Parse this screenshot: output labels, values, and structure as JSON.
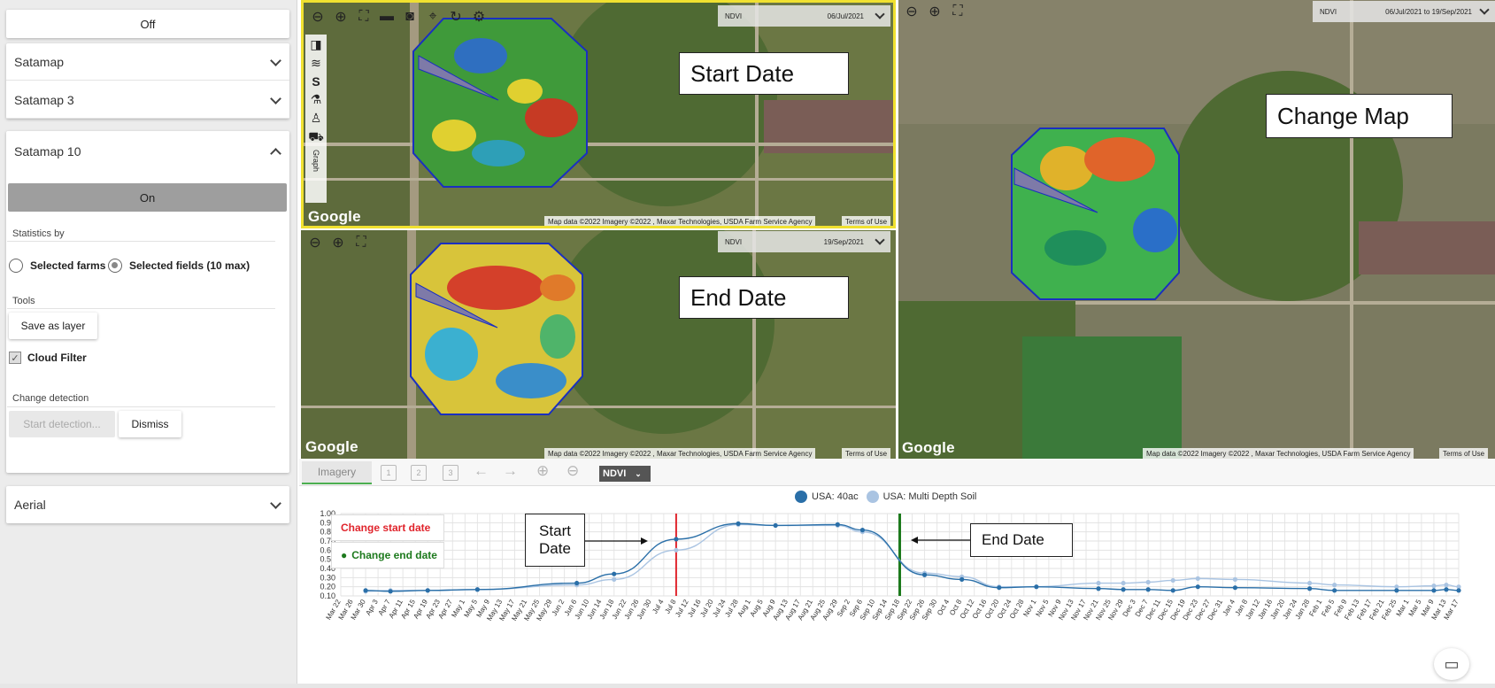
{
  "left_panel": {
    "off_label": "Off",
    "accordions": [
      "Satamap",
      "Satamap 3",
      "Satamap 10",
      "Aerial"
    ],
    "on_label": "On",
    "statistics_by_label": "Statistics by",
    "radio_farms": "Selected farms",
    "radio_fields": "Selected fields (10 max)",
    "tools_label": "Tools",
    "save_layer": "Save as layer",
    "cloud_filter": "Cloud Filter",
    "change_detection_label": "Change detection",
    "start_detection": "Start detection...",
    "dismiss": "Dismiss"
  },
  "maps": {
    "ndvi": "NDVI",
    "start_date": "06/Jul/2021",
    "end_date": "19/Sep/2021",
    "range": "06/Jul/2021 to 19/Sep/2021",
    "google": "Google",
    "map_data": "Map data ©2022 Imagery ©2022 , Maxar Technologies, USDA Farm Service Agency",
    "terms": "Terms of Use",
    "graph_tab": "Graph"
  },
  "callouts": {
    "start": "Start Date",
    "end": "End Date",
    "change": "Change Map",
    "chart_start_l1": "Start",
    "chart_start_l2": "Date",
    "chart_end": "End Date"
  },
  "bottom": {
    "tab_imagery": "Imagery",
    "ndvi_select": "NDVI",
    "btn_change_start": "Change start date",
    "btn_change_end": "Change end date"
  },
  "colors": {
    "series1": "#2a6fa8",
    "series2": "#aac4e2",
    "start_line": "#e0242c",
    "end_line": "#1d7a1d",
    "map_highlight": "#f0e130"
  },
  "chart_data": {
    "type": "line",
    "ylim": [
      0.1,
      1.0
    ],
    "yticks": [
      "1.00",
      "0.90",
      "0.80",
      "0.70",
      "0.60",
      "0.50",
      "0.40",
      "0.30",
      "0.20",
      "0.10"
    ],
    "legend": [
      "USA: 40ac",
      "USA: Multi Depth Soil"
    ],
    "legend_position": "top",
    "grid": true,
    "x": [
      "Mar 22",
      "Mar 26",
      "Mar 30",
      "Apr 3",
      "Apr 7",
      "Apr 11",
      "Apr 15",
      "Apr 19",
      "Apr 23",
      "Apr 27",
      "May 1",
      "May 5",
      "May 9",
      "May 13",
      "May 17",
      "May 21",
      "May 25",
      "May 29",
      "Jun 2",
      "Jun 6",
      "Jun 10",
      "Jun 14",
      "Jun 18",
      "Jun 22",
      "Jun 26",
      "Jun 30",
      "Jul 4",
      "Jul 8",
      "Jul 12",
      "Jul 16",
      "Jul 20",
      "Jul 24",
      "Jul 28",
      "Aug 1",
      "Aug 5",
      "Aug 9",
      "Aug 13",
      "Aug 17",
      "Aug 21",
      "Aug 25",
      "Aug 29",
      "Sep 2",
      "Sep 6",
      "Sep 10",
      "Sep 14",
      "Sep 18",
      "Sep 22",
      "Sep 26",
      "Sep 30",
      "Oct 4",
      "Oct 8",
      "Oct 12",
      "Oct 16",
      "Oct 20",
      "Oct 24",
      "Oct 28",
      "Nov 1",
      "Nov 5",
      "Nov 9",
      "Nov 13",
      "Nov 17",
      "Nov 21",
      "Nov 25",
      "Nov 29",
      "Dec 3",
      "Dec 7",
      "Dec 11",
      "Dec 15",
      "Dec 19",
      "Dec 23",
      "Dec 27",
      "Dec 31",
      "Jan 4",
      "Jan 8",
      "Jan 12",
      "Jan 16",
      "Jan 20",
      "Jan 24",
      "Jan 28",
      "Feb 1",
      "Feb 5",
      "Feb 9",
      "Feb 13",
      "Feb 17",
      "Feb 21",
      "Feb 25",
      "Mar 1",
      "Mar 5",
      "Mar 9",
      "Mar 13",
      "Mar 17"
    ],
    "series": [
      {
        "name": "USA: 40ac",
        "points": [
          [
            2,
            0.16
          ],
          [
            4,
            0.15
          ],
          [
            7,
            0.16
          ],
          [
            11,
            0.17
          ],
          [
            19,
            0.24
          ],
          [
            22,
            0.34
          ],
          [
            27,
            0.72
          ],
          [
            32,
            0.89
          ],
          [
            35,
            0.87
          ],
          [
            40,
            0.88
          ],
          [
            42,
            0.82
          ],
          [
            47,
            0.33
          ],
          [
            50,
            0.28
          ],
          [
            53,
            0.19
          ],
          [
            56,
            0.2
          ],
          [
            61,
            0.18
          ],
          [
            63,
            0.17
          ],
          [
            65,
            0.17
          ],
          [
            67,
            0.16
          ],
          [
            69,
            0.2
          ],
          [
            72,
            0.19
          ],
          [
            78,
            0.18
          ],
          [
            80,
            0.16
          ],
          [
            85,
            0.16
          ],
          [
            88,
            0.16
          ],
          [
            89,
            0.17
          ],
          [
            90,
            0.16
          ]
        ]
      },
      {
        "name": "USA: Multi Depth Soil",
        "points": [
          [
            2,
            0.15
          ],
          [
            4,
            0.16
          ],
          [
            7,
            0.16
          ],
          [
            11,
            0.17
          ],
          [
            19,
            0.22
          ],
          [
            22,
            0.28
          ],
          [
            27,
            0.6
          ],
          [
            32,
            0.88
          ],
          [
            35,
            0.87
          ],
          [
            40,
            0.87
          ],
          [
            42,
            0.8
          ],
          [
            47,
            0.35
          ],
          [
            50,
            0.31
          ],
          [
            53,
            0.2
          ],
          [
            56,
            0.2
          ],
          [
            61,
            0.24
          ],
          [
            63,
            0.24
          ],
          [
            65,
            0.25
          ],
          [
            67,
            0.27
          ],
          [
            69,
            0.29
          ],
          [
            72,
            0.28
          ],
          [
            78,
            0.24
          ],
          [
            80,
            0.22
          ],
          [
            85,
            0.2
          ],
          [
            88,
            0.21
          ],
          [
            89,
            0.22
          ],
          [
            90,
            0.2
          ]
        ]
      }
    ],
    "start_marker": "Jul 8",
    "end_marker": "Sep 18"
  }
}
